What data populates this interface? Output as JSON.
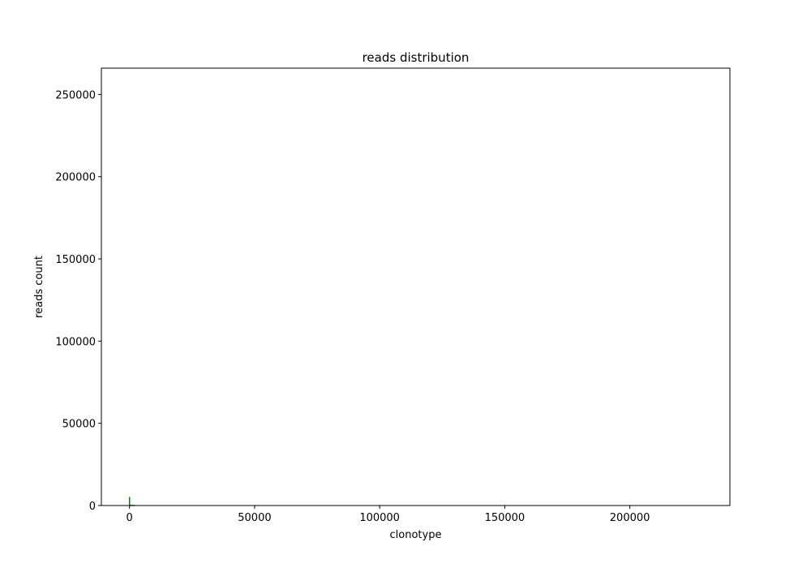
{
  "chart_data": {
    "type": "line",
    "title": "reads distribution",
    "xlabel": "clonotype",
    "ylabel": "reads count",
    "xlim": [
      -11250,
      240000
    ],
    "ylim": [
      0,
      266000
    ],
    "x_ticks": [
      0,
      50000,
      100000,
      150000,
      200000
    ],
    "x_tick_labels": [
      "0",
      "50000",
      "100000",
      "150000",
      "200000"
    ],
    "y_ticks": [
      0,
      50000,
      100000,
      150000,
      200000,
      250000
    ],
    "y_tick_labels": [
      "0",
      "50000",
      "100000",
      "150000",
      "200000",
      "250000"
    ],
    "grid": false,
    "legend": "none",
    "series": [
      {
        "color": "#008000",
        "x": [
          0,
          1,
          2,
          5,
          10,
          30,
          100,
          300,
          1000,
          2000
        ],
        "y": [
          5200,
          3000,
          2000,
          1200,
          700,
          400,
          200,
          100,
          40,
          10
        ]
      }
    ]
  }
}
